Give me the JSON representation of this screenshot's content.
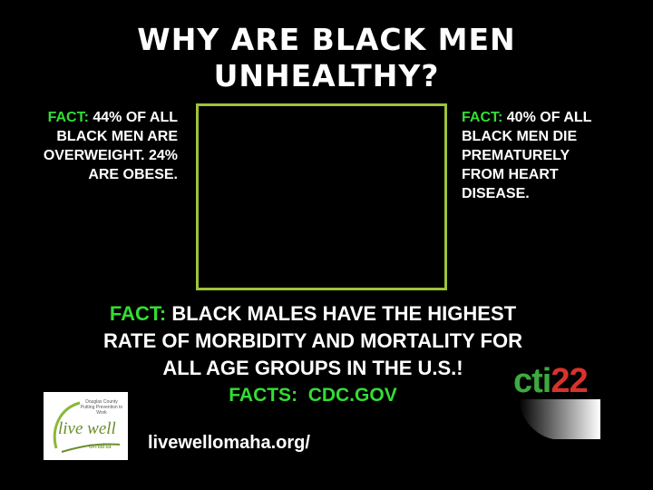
{
  "title": {
    "lines": [
      "WHY ARE BLACK MEN",
      "UNHEALTHY?"
    ]
  },
  "left_fact": {
    "label": "FACT:",
    "lines": [
      "44% OF ALL",
      "BLACK MEN ARE",
      "OVERWEIGHT. 24%",
      "ARE OBESE."
    ]
  },
  "right_fact": {
    "label": "FACT:",
    "lines": [
      "40% OF ALL",
      "BLACK MEN DIE",
      "PREMATURELY",
      "FROM HEART",
      "DISEASE."
    ]
  },
  "main_fact": {
    "label": "FACT:",
    "lines": [
      "BLACK MALES HAVE THE HIGHEST",
      "RATE OF MORBIDITY AND MORTALITY FOR",
      "ALL AGE GROUPS IN THE U.S.!"
    ]
  },
  "source": "FACTS:  CDC.GOV",
  "logo": {
    "tagline": "Douglas County Putting Prevention to Work",
    "name": "live well",
    "city": "omaha"
  },
  "url": "livewellomaha.org/",
  "cti_logo": {
    "letters": "cti",
    "number": "22"
  }
}
